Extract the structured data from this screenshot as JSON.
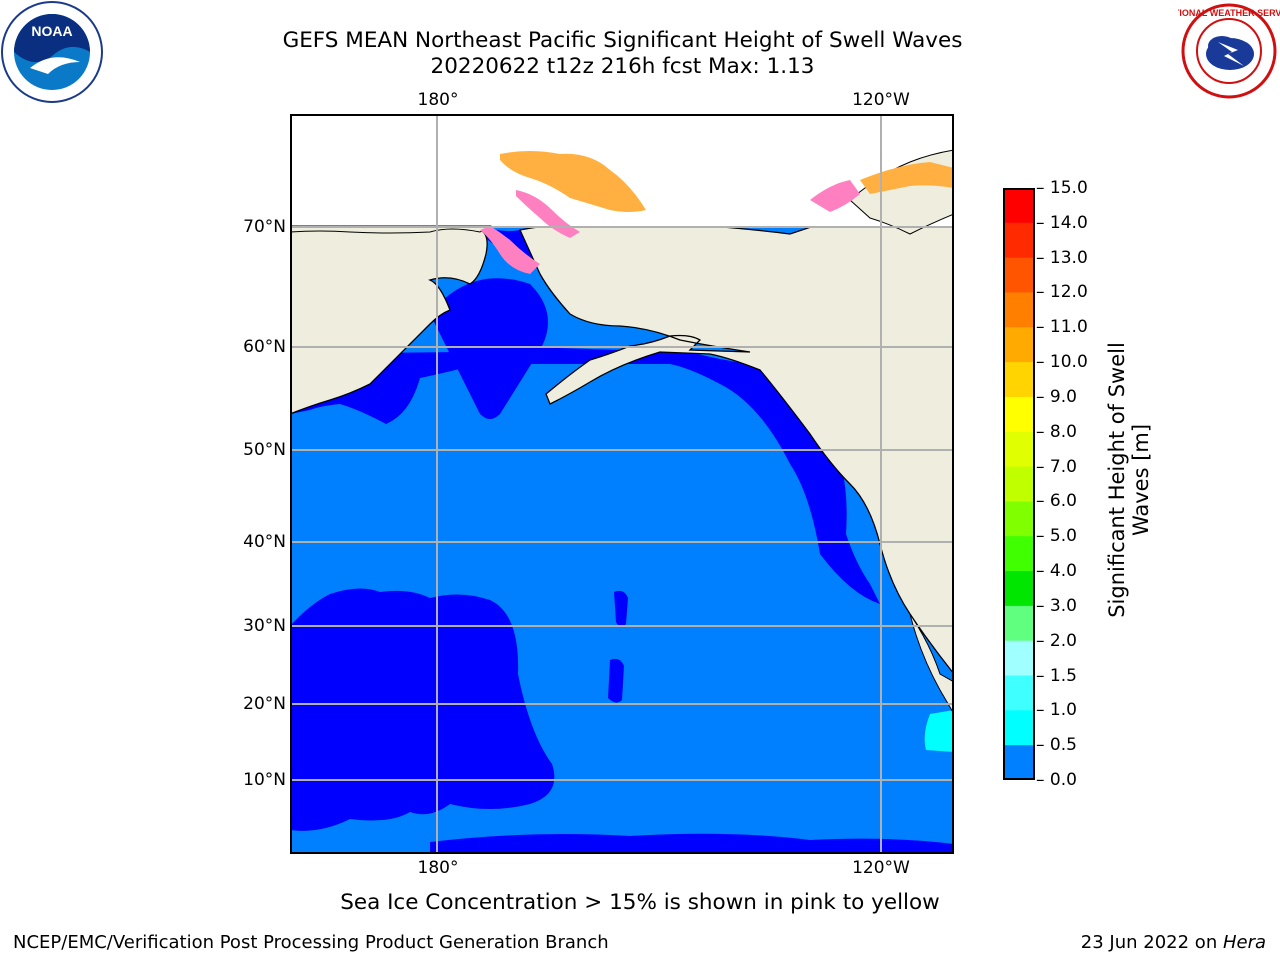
{
  "header": {
    "title": "GEFS MEAN Northeast Pacific Significant Height of Swell Waves",
    "subtitle": "20220622 t12z 216h fcst   Max: 1.13"
  },
  "logos": {
    "noaa_text": "NOAA",
    "noaa_ring": "NATIONAL OCEANIC AND ATMOSPHERIC ADMINISTRATION · U.S. DEPARTMENT OF COMMERCE",
    "nws_ring": "NATIONAL WEATHER SERVICE"
  },
  "map": {
    "lon_labels_top": [
      "180°",
      "120°W"
    ],
    "lon_labels_bottom": [
      "180°",
      "120°W"
    ],
    "lat_labels": [
      "70°N",
      "60°N",
      "50°N",
      "40°N",
      "30°N",
      "20°N",
      "10°N"
    ],
    "colors": {
      "land": "#efedde",
      "ocean_low": "#0000ff",
      "ocean_mid": "#0080ff",
      "ocean_high": "#00ffff",
      "ice_pink": "#ff80c0",
      "ice_orange": "#ffb040",
      "grid": "#b0b0b0"
    }
  },
  "colorbar": {
    "label": "Significant Height of Swell Waves [m]",
    "ticks": [
      "15.0",
      "14.0",
      "13.0",
      "12.0",
      "11.0",
      "10.0",
      "9.0",
      "8.0",
      "7.0",
      "6.0",
      "5.0",
      "4.0",
      "3.0",
      "2.0",
      "1.5",
      "1.0",
      "0.5",
      "0.0"
    ],
    "colors": [
      "#ff0000",
      "#ff2a00",
      "#ff5500",
      "#ff8000",
      "#ffaa00",
      "#ffd400",
      "#ffff00",
      "#e0ff00",
      "#c0ff00",
      "#80ff00",
      "#40ff00",
      "#00e600",
      "#60ff80",
      "#a0ffff",
      "#40ffff",
      "#00ffff",
      "#0080ff",
      "#0000ff"
    ]
  },
  "note": "Sea Ice Concentration > 15% is shown in pink to yellow",
  "footer": {
    "left": "NCEP/EMC/Verification Post Processing Product Generation Branch",
    "right_prefix": "23 Jun 2022 on ",
    "right_host": "Hera"
  }
}
